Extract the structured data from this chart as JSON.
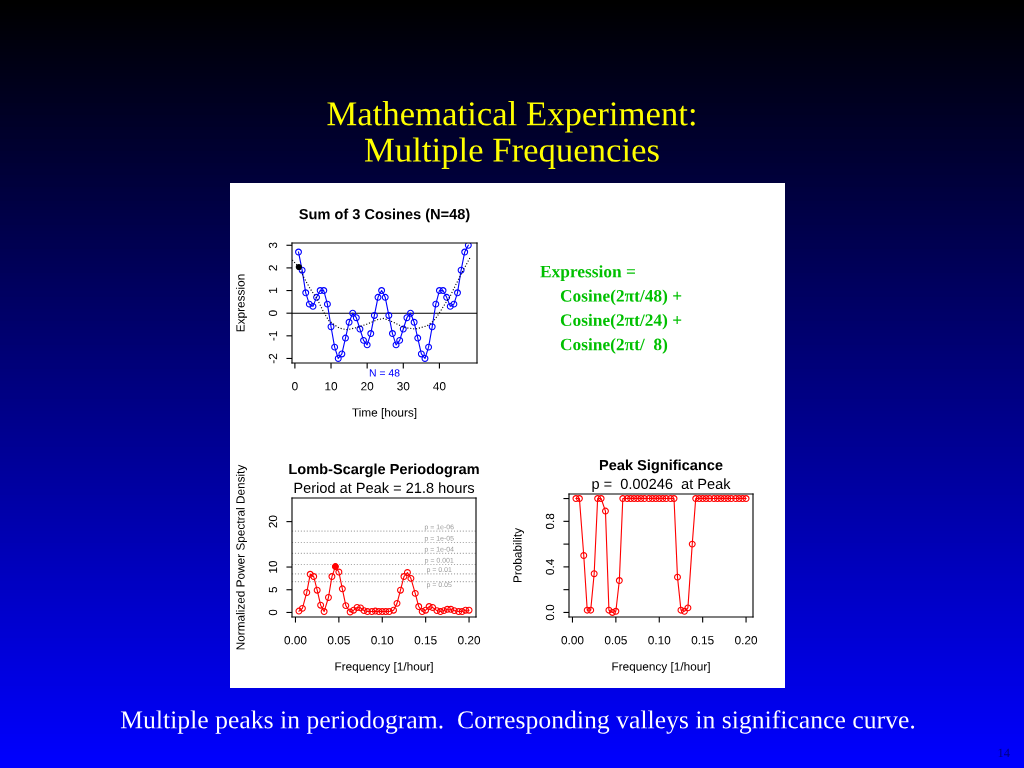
{
  "chart_data": [
    {
      "type": "other",
      "title": "Mathematical Experiment:\nMultiple Frequencies",
      "annotations": [
        "Multiple peaks in periodogram.  Corresponding valleys in significance curve.",
        "14"
      ]
    },
    {
      "type": "line",
      "title": "Sum of 3 Cosines (N=48)",
      "xlabel": "Time [hours]",
      "ylabel": "Expression",
      "xlim": [
        -0.8,
        50.4
      ],
      "xticks": [
        0,
        10,
        20,
        30,
        40
      ],
      "ylim": [
        -2.2,
        3.1
      ],
      "yticks": [
        -2,
        -1,
        0,
        1,
        2,
        3
      ],
      "ref_lines": [
        {
          "axis": "y",
          "value": 0,
          "color": "#000000",
          "line_style": "solid"
        }
      ],
      "annotations": [
        "N = 48"
      ],
      "series": [
        {
          "color": "#0000ff",
          "marker": "circle",
          "x": [
            1,
            2,
            3,
            4,
            5,
            6,
            7,
            8,
            9,
            10,
            11,
            12,
            13,
            14,
            15,
            16,
            17,
            18,
            19,
            20,
            21,
            22,
            23,
            24,
            25,
            26,
            27,
            28,
            29,
            30,
            31,
            32,
            33,
            34,
            35,
            36,
            37,
            38,
            39,
            40,
            41,
            42,
            43,
            44,
            45,
            46,
            47,
            48
          ],
          "values": [
            2.7,
            1.9,
            0.9,
            0.4,
            0.3,
            0.7,
            1.0,
            1.0,
            0.4,
            -0.6,
            -1.5,
            -2.0,
            -1.8,
            -1.1,
            -0.4,
            0.0,
            -0.2,
            -0.7,
            -1.2,
            -1.4,
            -0.9,
            -0.1,
            0.7,
            1.0,
            0.7,
            -0.1,
            -0.9,
            -1.4,
            -1.2,
            -0.7,
            -0.2,
            0.0,
            -0.4,
            -1.1,
            -1.8,
            -2.0,
            -1.5,
            -0.6,
            0.4,
            1.0,
            1.0,
            0.7,
            0.3,
            0.4,
            0.9,
            1.9,
            2.7,
            3.0
          ]
        },
        {
          "color": "#000000",
          "marker": "none",
          "line_style": "dotted",
          "x": [
            -0.75,
            1.1,
            2.5,
            4.3,
            6.2,
            8.0,
            9.4,
            11.7,
            12.6,
            14.5,
            17.2,
            20.0,
            22.8,
            24.6,
            27.4,
            30.1,
            33.4,
            36.6,
            38.4,
            39.8,
            41.2,
            43.0,
            45.3,
            46.7,
            48.6
          ],
          "values": [
            2.35,
            2.04,
            1.57,
            1.06,
            0.62,
            0.03,
            -0.33,
            -0.6,
            -0.67,
            -0.73,
            -0.63,
            -0.48,
            -0.29,
            -0.23,
            -0.41,
            -0.63,
            -0.7,
            -0.56,
            -0.34,
            -0.04,
            0.32,
            0.76,
            1.5,
            1.93,
            2.49
          ]
        },
        {
          "type": "scatter",
          "color": "#000000",
          "marker": "circle",
          "x": [
            1.1
          ],
          "values": [
            2.04
          ]
        }
      ]
    },
    {
      "type": "other",
      "annotations": [
        "Expression =",
        "Cosine(2πt/48) +",
        "Cosine(2πt/24) +",
        "Cosine(2πt/  8)"
      ]
    },
    {
      "type": "line",
      "title": "Lomb-Scargle Periodogram",
      "subtitle": "Period at Peak = 21.8 hours",
      "xlabel": "Frequency [1/hour]",
      "ylabel": "Normalized Power Spectral Density",
      "x": [
        0.004,
        0.008,
        0.013,
        0.017,
        0.021,
        0.025,
        0.029,
        0.033,
        0.038,
        0.042,
        0.046,
        0.05,
        0.054,
        0.058,
        0.063,
        0.067,
        0.071,
        0.075,
        0.079,
        0.083,
        0.088,
        0.092,
        0.096,
        0.1,
        0.104,
        0.108,
        0.113,
        0.117,
        0.121,
        0.125,
        0.129,
        0.133,
        0.138,
        0.142,
        0.146,
        0.15,
        0.154,
        0.158,
        0.163,
        0.167,
        0.171,
        0.175,
        0.179,
        0.183,
        0.188,
        0.192,
        0.196,
        0.2
      ],
      "xlim": [
        -0.004,
        0.208
      ],
      "xticks": [
        {
          "value": 0,
          "label": "0.00"
        },
        0.05,
        {
          "value": 0.1,
          "label": "0.10"
        },
        0.15,
        {
          "value": 0.2,
          "label": "0.20"
        }
      ],
      "ylim": [
        -1,
        25.2
      ],
      "yticks": [
        0,
        5,
        10,
        20
      ],
      "ref_lines": [
        {
          "axis": "y",
          "value": 17.9,
          "color": "#aaaaaa",
          "line_style": "dotted"
        },
        {
          "axis": "y",
          "value": 15.4,
          "color": "#aaaaaa",
          "line_style": "dotted"
        },
        {
          "axis": "y",
          "value": 13.0,
          "color": "#aaaaaa",
          "line_style": "dotted"
        },
        {
          "axis": "y",
          "value": 10.55,
          "color": "#aaaaaa",
          "line_style": "dotted"
        },
        {
          "axis": "y",
          "value": 8.5,
          "color": "#aaaaaa",
          "line_style": "dotted"
        },
        {
          "axis": "y",
          "value": 6.8,
          "color": "#aaaaaa",
          "line_style": "dotted"
        }
      ],
      "annotations": [
        {
          "text": "p = 1e-06",
          "y": 17.9
        },
        {
          "text": "p = 1e-05",
          "y": 15.4
        },
        {
          "text": "p = 1e-04",
          "y": 13.0
        },
        {
          "text": "p = 0.001",
          "y": 10.55
        },
        {
          "text": "p = 0.01",
          "y": 8.5
        },
        {
          "text": "p = 0.05",
          "y": 6.8
        }
      ],
      "series": [
        {
          "color": "#ff0000",
          "marker": "circle",
          "values": [
            0.3,
            0.9,
            4.4,
            8.4,
            7.9,
            4.9,
            1.6,
            0.2,
            3.3,
            7.9,
            10.1,
            8.9,
            5.2,
            1.5,
            0.1,
            0.5,
            1.1,
            1.0,
            0.4,
            0.2,
            0.2,
            0.3,
            0.2,
            0.2,
            0.2,
            0.2,
            0.5,
            2.0,
            4.9,
            7.9,
            8.8,
            7.5,
            4.2,
            1.3,
            0.2,
            0.5,
            1.3,
            1.1,
            0.4,
            0.2,
            0.4,
            0.7,
            0.7,
            0.4,
            0.2,
            0.2,
            0.5,
            0.5
          ]
        },
        {
          "type": "scatter",
          "color": "#ff0000",
          "marker": "circle",
          "x": [
            0.046
          ],
          "values": [
            10.1
          ]
        }
      ]
    },
    {
      "type": "line",
      "title": "Peak Significance",
      "subtitle": "p =  0.00246  at Peak",
      "xlabel": "Frequency [1/hour]",
      "ylabel": "Probability",
      "x": [
        0.004,
        0.008,
        0.013,
        0.017,
        0.021,
        0.025,
        0.029,
        0.033,
        0.038,
        0.042,
        0.046,
        0.05,
        0.054,
        0.058,
        0.063,
        0.067,
        0.071,
        0.075,
        0.079,
        0.083,
        0.088,
        0.092,
        0.096,
        0.1,
        0.104,
        0.108,
        0.113,
        0.117,
        0.121,
        0.125,
        0.129,
        0.133,
        0.138,
        0.142,
        0.146,
        0.15,
        0.154,
        0.158,
        0.163,
        0.167,
        0.171,
        0.175,
        0.179,
        0.183,
        0.188,
        0.192,
        0.196,
        0.2
      ],
      "xlim": [
        -0.004,
        0.208
      ],
      "xticks": [
        {
          "value": 0,
          "label": "0.00"
        },
        0.05,
        {
          "value": 0.1,
          "label": "0.10"
        },
        0.15,
        {
          "value": 0.2,
          "label": "0.20"
        }
      ],
      "ylim": [
        -0.04,
        1.04
      ],
      "yticks": [
        {
          "value": 0,
          "label": "0.0"
        },
        {
          "value": 0.2,
          "label": null
        },
        0.4,
        {
          "value": 0.6,
          "label": null
        },
        0.8,
        {
          "value": 1,
          "label": null
        }
      ],
      "series": [
        {
          "color": "#ff0000",
          "marker": "circle",
          "values": [
            1,
            1,
            0.5,
            0.02,
            0.02,
            0.34,
            1,
            1,
            0.89,
            0.02,
            0.0,
            0.01,
            0.28,
            1,
            1,
            1,
            1,
            1,
            1,
            1,
            1,
            1,
            1,
            1,
            1,
            1,
            1,
            1,
            0.31,
            0.02,
            0.01,
            0.04,
            0.6,
            1,
            1,
            1,
            1,
            1,
            1,
            1,
            1,
            1,
            1,
            1,
            1,
            1,
            1,
            1
          ]
        }
      ]
    }
  ]
}
